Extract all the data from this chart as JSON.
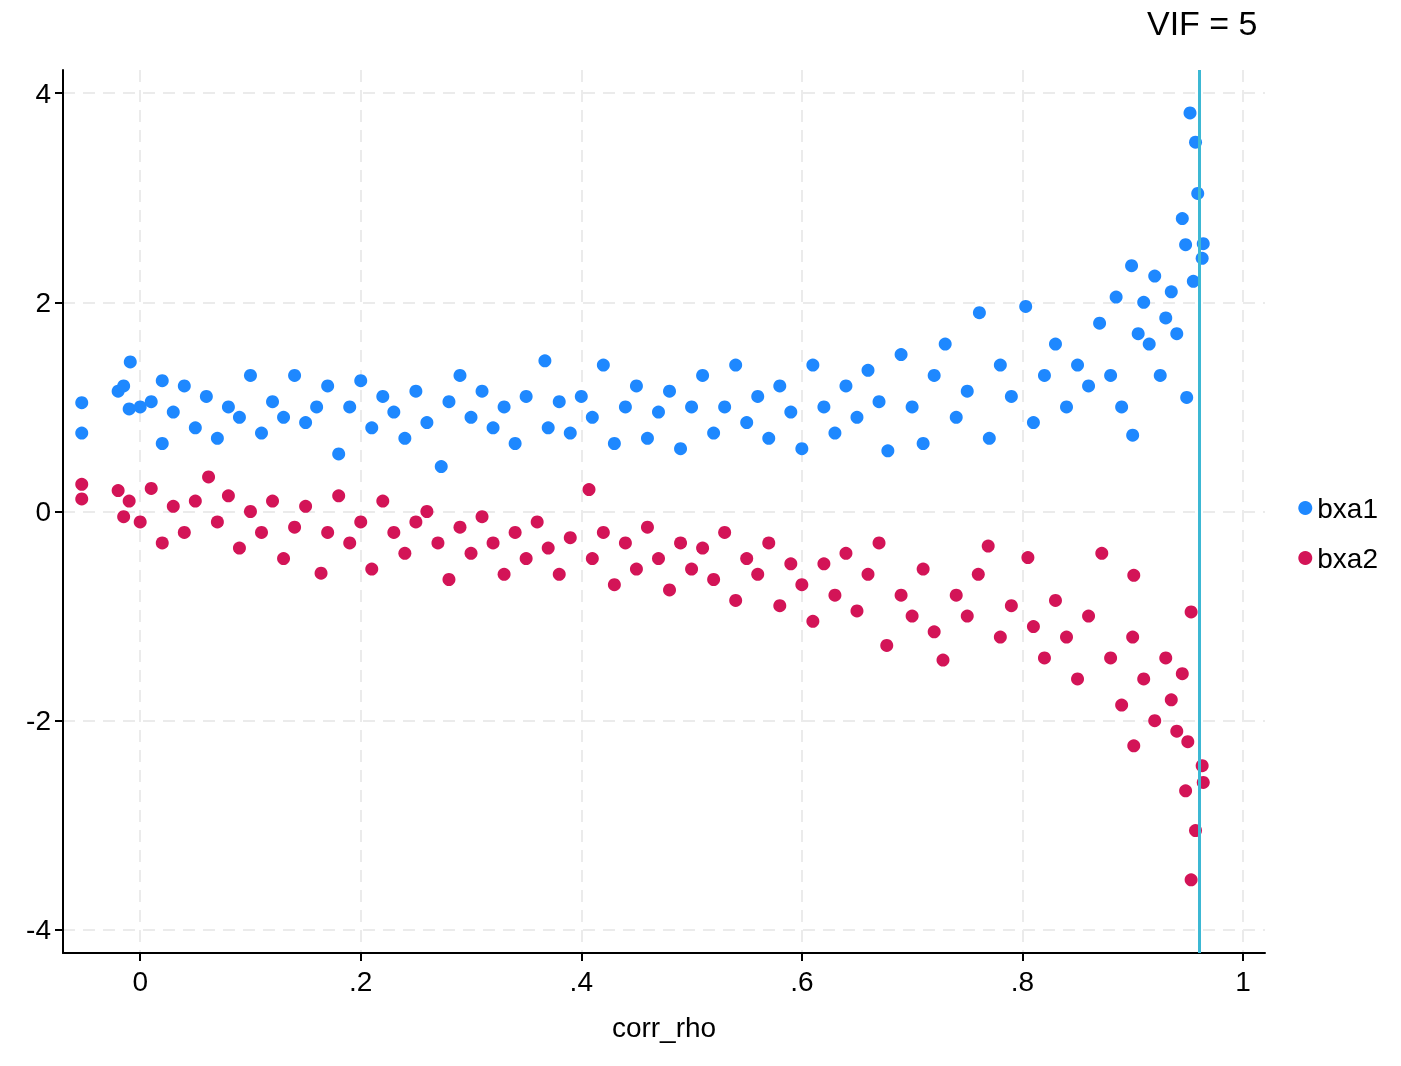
{
  "chart_data": {
    "type": "scatter",
    "xlabel": "corr_rho",
    "xlim": [
      -0.07,
      1.02
    ],
    "ylim": [
      -4.22,
      4.22
    ],
    "xticks": [
      0,
      {
        "value": 0.2,
        "label": ".2"
      },
      {
        "value": 0.4,
        "label": ".4"
      },
      {
        "value": 0.6,
        "label": ".6"
      },
      {
        "value": 0.8,
        "label": ".8"
      },
      1
    ],
    "yticks": [
      -4,
      -2,
      0,
      2,
      4
    ],
    "grid": true,
    "legend": "right",
    "marker": "circle",
    "ref_lines": [
      {
        "axis": "x",
        "value": 0.957,
        "color": "#3cb8d4"
      }
    ],
    "annotations": [
      "VIF = 5"
    ],
    "series": [
      {
        "name": "bxa1",
        "color": "#1e88ff",
        "x": [
          -0.053,
          -0.053,
          -0.02,
          -0.015,
          -0.01,
          -0.009,
          0.0,
          0.01,
          0.02,
          0.02,
          0.03,
          0.04,
          0.05,
          0.06,
          0.07,
          0.08,
          0.09,
          0.1,
          0.11,
          0.12,
          0.13,
          0.14,
          0.15,
          0.16,
          0.17,
          0.18,
          0.19,
          0.2,
          0.21,
          0.22,
          0.23,
          0.24,
          0.25,
          0.26,
          0.273,
          0.28,
          0.29,
          0.3,
          0.31,
          0.32,
          0.33,
          0.34,
          0.35,
          0.367,
          0.37,
          0.38,
          0.39,
          0.4,
          0.41,
          0.42,
          0.43,
          0.44,
          0.45,
          0.46,
          0.47,
          0.48,
          0.49,
          0.5,
          0.51,
          0.52,
          0.53,
          0.54,
          0.55,
          0.56,
          0.57,
          0.58,
          0.59,
          0.6,
          0.61,
          0.62,
          0.63,
          0.64,
          0.65,
          0.66,
          0.67,
          0.678,
          0.69,
          0.7,
          0.71,
          0.72,
          0.73,
          0.74,
          0.75,
          0.761,
          0.77,
          0.78,
          0.79,
          0.803,
          0.81,
          0.82,
          0.83,
          0.84,
          0.85,
          0.86,
          0.87,
          0.88,
          0.885,
          0.89,
          0.899,
          0.9,
          0.905,
          0.91,
          0.915,
          0.92,
          0.925,
          0.93,
          0.935,
          0.94,
          0.945,
          0.948,
          0.949,
          0.952,
          0.955,
          0.957,
          0.959,
          0.963,
          0.964
        ],
        "values": [
          1.04,
          0.75,
          1.15,
          1.2,
          0.98,
          1.43,
          1.0,
          1.05,
          0.65,
          1.25,
          0.95,
          1.2,
          0.8,
          1.1,
          0.7,
          1.0,
          0.9,
          1.3,
          0.75,
          1.05,
          0.9,
          1.3,
          0.85,
          1.0,
          1.2,
          0.55,
          1.0,
          1.25,
          0.8,
          1.1,
          0.95,
          0.7,
          1.15,
          0.85,
          0.43,
          1.05,
          1.3,
          0.9,
          1.15,
          0.8,
          1.0,
          0.65,
          1.1,
          1.44,
          0.8,
          1.05,
          0.75,
          1.1,
          0.9,
          1.4,
          0.65,
          1.0,
          1.2,
          0.7,
          0.95,
          1.15,
          0.6,
          1.0,
          1.3,
          0.75,
          1.0,
          1.4,
          0.85,
          1.1,
          0.7,
          1.2,
          0.95,
          0.6,
          1.4,
          1.0,
          0.75,
          1.2,
          0.9,
          1.35,
          1.05,
          0.58,
          1.5,
          1.0,
          0.65,
          1.3,
          1.6,
          0.9,
          1.15,
          1.9,
          0.7,
          1.4,
          1.1,
          1.96,
          0.85,
          1.3,
          1.6,
          1.0,
          1.4,
          1.2,
          1.8,
          1.3,
          2.05,
          1.0,
          2.35,
          0.73,
          1.7,
          2.0,
          1.6,
          2.25,
          1.3,
          1.85,
          2.1,
          1.7,
          2.8,
          2.55,
          1.09,
          3.81,
          2.2,
          3.53,
          3.04,
          2.42,
          2.56
        ]
      },
      {
        "name": "bxa2",
        "color": "#d31457",
        "x": [
          -0.053,
          -0.053,
          -0.02,
          -0.015,
          -0.01,
          0.0,
          0.01,
          0.02,
          0.03,
          0.04,
          0.05,
          0.062,
          0.07,
          0.08,
          0.09,
          0.1,
          0.11,
          0.12,
          0.13,
          0.14,
          0.15,
          0.164,
          0.17,
          0.18,
          0.19,
          0.2,
          0.21,
          0.22,
          0.23,
          0.24,
          0.25,
          0.26,
          0.27,
          0.28,
          0.29,
          0.3,
          0.31,
          0.32,
          0.33,
          0.34,
          0.35,
          0.36,
          0.37,
          0.38,
          0.39,
          0.407,
          0.41,
          0.42,
          0.43,
          0.44,
          0.45,
          0.46,
          0.47,
          0.48,
          0.49,
          0.5,
          0.51,
          0.52,
          0.53,
          0.54,
          0.55,
          0.56,
          0.57,
          0.58,
          0.59,
          0.6,
          0.61,
          0.62,
          0.63,
          0.64,
          0.65,
          0.66,
          0.67,
          0.677,
          0.69,
          0.7,
          0.71,
          0.72,
          0.728,
          0.74,
          0.75,
          0.76,
          0.769,
          0.78,
          0.79,
          0.805,
          0.81,
          0.82,
          0.83,
          0.84,
          0.85,
          0.86,
          0.872,
          0.88,
          0.89,
          0.9,
          0.901,
          0.901,
          0.91,
          0.92,
          0.93,
          0.935,
          0.94,
          0.945,
          0.948,
          0.95,
          0.953,
          0.953,
          0.957,
          0.963,
          0.964
        ],
        "values": [
          0.26,
          0.12,
          0.2,
          -0.05,
          0.1,
          -0.1,
          0.22,
          -0.3,
          0.05,
          -0.2,
          0.1,
          0.33,
          -0.1,
          0.15,
          -0.35,
          0.0,
          -0.2,
          0.1,
          -0.45,
          -0.15,
          0.05,
          -0.59,
          -0.2,
          0.15,
          -0.3,
          -0.1,
          -0.55,
          0.1,
          -0.2,
          -0.4,
          -0.1,
          0.0,
          -0.3,
          -0.65,
          -0.15,
          -0.4,
          -0.05,
          -0.3,
          -0.6,
          -0.2,
          -0.45,
          -0.1,
          -0.35,
          -0.6,
          -0.25,
          0.21,
          -0.45,
          -0.2,
          -0.7,
          -0.3,
          -0.55,
          -0.15,
          -0.45,
          -0.75,
          -0.3,
          -0.55,
          -0.35,
          -0.65,
          -0.2,
          -0.85,
          -0.45,
          -0.6,
          -0.3,
          -0.9,
          -0.5,
          -0.7,
          -1.05,
          -0.5,
          -0.8,
          -0.4,
          -0.95,
          -0.6,
          -0.3,
          -1.28,
          -0.8,
          -1.0,
          -0.55,
          -1.15,
          -1.42,
          -0.8,
          -1.0,
          -0.6,
          -0.33,
          -1.2,
          -0.9,
          -0.44,
          -1.1,
          -1.4,
          -0.85,
          -1.2,
          -1.6,
          -1.0,
          -0.4,
          -1.4,
          -1.85,
          -1.2,
          -0.61,
          -2.24,
          -1.6,
          -2.0,
          -1.4,
          -1.8,
          -2.1,
          -1.55,
          -2.67,
          -2.2,
          -0.96,
          -3.52,
          -3.05,
          -2.43,
          -2.59
        ]
      }
    ]
  }
}
